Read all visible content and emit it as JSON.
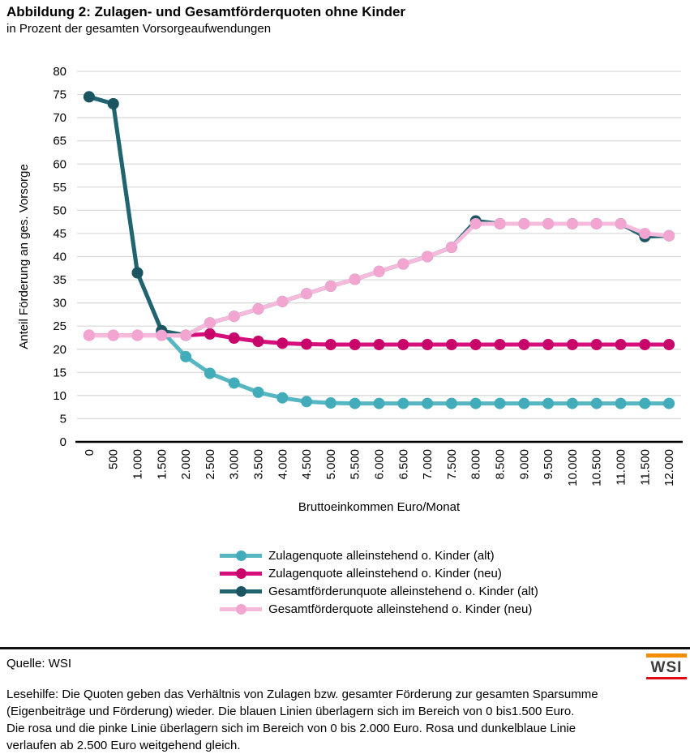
{
  "header": {
    "title": "Abbildung 2: Zulagen- und Gesamtförderquoten ohne Kinder",
    "subtitle": "in Prozent der gesamten Vorsorgeaufwendungen"
  },
  "chart_data": {
    "type": "line",
    "title": "",
    "xlabel": "Bruttoeinkommen Euro/Monat",
    "ylabel": "Anteil Förderung an ges. Vorsorge",
    "ylim": [
      0,
      80
    ],
    "ytick_step": 5,
    "grid": true,
    "legend_position": "bottom",
    "grid_color": "#D7D7D7",
    "axis_color": "#000000",
    "categories": [
      "0",
      "500",
      "1.000",
      "1.500",
      "2.000",
      "2.500",
      "3.000",
      "3.500",
      "4.000",
      "4.500",
      "5.000",
      "5.500",
      "6.000",
      "6.500",
      "7.000",
      "7.500",
      "8.000",
      "8.500",
      "9.000",
      "9.500",
      "10.000",
      "10.500",
      "11.000",
      "11.500",
      "12.000"
    ],
    "series": [
      {
        "name": "Zulagenquote alleinstehend o. Kinder (alt)",
        "color": "#56B7C2",
        "marker_color": "#43ACBA",
        "values": [
          74.5,
          73,
          36.5,
          24,
          18.4,
          14.8,
          12.7,
          10.7,
          9.5,
          8.7,
          8.4,
          8.3,
          8.3,
          8.3,
          8.3,
          8.3,
          8.3,
          8.3,
          8.3,
          8.3,
          8.3,
          8.3,
          8.3,
          8.3,
          8.3
        ]
      },
      {
        "name": "Zulagenquote alleinstehend o. Kinder (neu)",
        "color": "#D60F7D",
        "marker_color": "#C8046B",
        "values": [
          23,
          23,
          23,
          23,
          23,
          23.3,
          22.4,
          21.7,
          21.3,
          21.1,
          21,
          21,
          21,
          21,
          21,
          21,
          21,
          21,
          21,
          21,
          21,
          21,
          21,
          21,
          21
        ]
      },
      {
        "name": "Gesamtförderunquote alleinstehend o. Kinder (alt)",
        "color": "#226370",
        "marker_color": "#1B5562",
        "values": [
          74.5,
          73,
          36.5,
          24,
          23,
          25.7,
          27.1,
          28.7,
          30.3,
          32,
          33.6,
          35.1,
          36.8,
          38.4,
          40,
          42,
          47.7,
          47.1,
          47.1,
          47.1,
          47.1,
          47.1,
          47.1,
          44.3,
          44.5
        ]
      },
      {
        "name": "Gesamtförderquote alleinstehend o. Kinder (neu)",
        "color": "#F6BADC",
        "marker_color": "#F2A5D1",
        "values": [
          23,
          23,
          23,
          23,
          23,
          25.7,
          27.1,
          28.7,
          30.3,
          32,
          33.6,
          35.1,
          36.8,
          38.4,
          40,
          42,
          47.1,
          47.1,
          47.1,
          47.1,
          47.1,
          47.1,
          47.1,
          45,
          44.5
        ]
      }
    ]
  },
  "footer": {
    "source": "Quelle: WSI",
    "logo": {
      "text": "WSI",
      "top_bar_color": "#F18F01",
      "bottom_bar_color": "#E30613"
    },
    "note_lines": [
      "Lesehilfe: Die Quoten geben das Verhältnis von Zulagen bzw. gesamter Förderung zur gesamten Sparsumme",
      "(Eigenbeiträge und Förderung) wieder. Die blauen Linien überlagern sich im Bereich von 0 bis1.500 Euro.",
      "Die rosa und die pinke Linie überlagern sich im Bereich von 0 bis 2.000 Euro. Rosa und dunkelblaue Linie",
      "verlaufen ab 2.500 Euro weitgehend gleich."
    ]
  }
}
